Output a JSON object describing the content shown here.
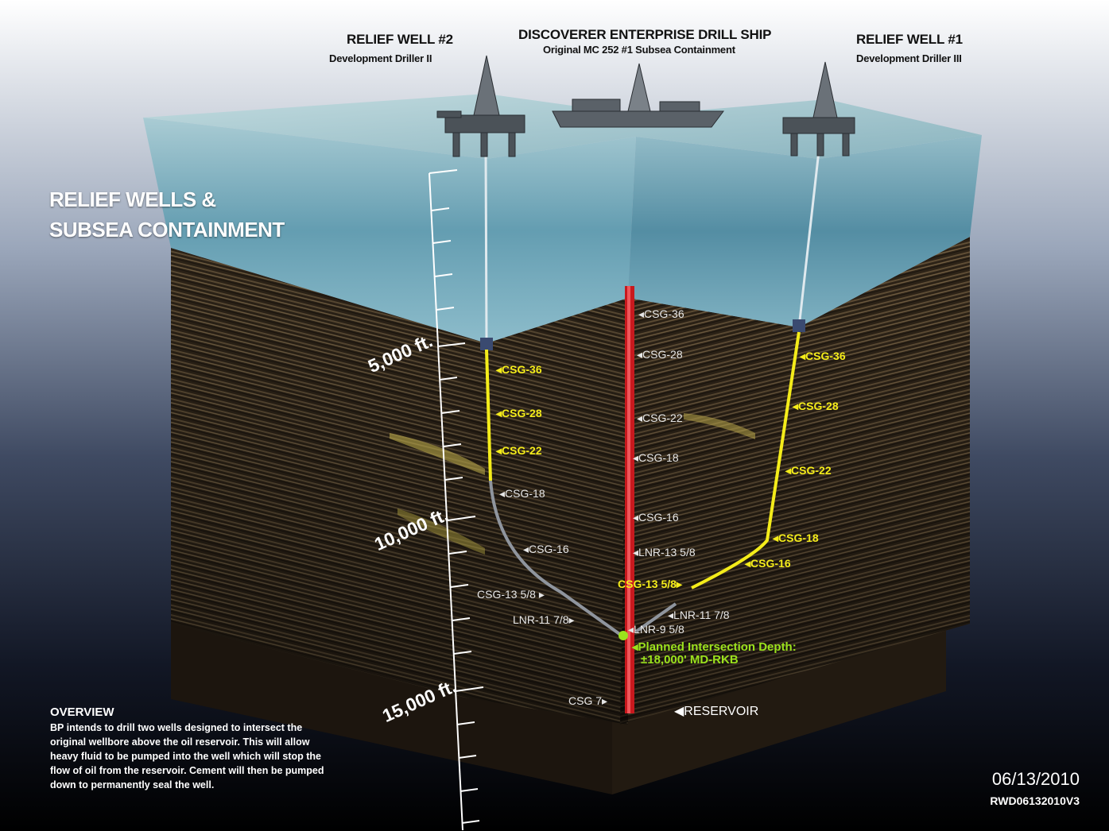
{
  "rigs": {
    "relief2": {
      "title": "RELIEF WELL #2",
      "subtitle": "Development Driller II"
    },
    "ship": {
      "title": "DISCOVERER ENTERPRISE DRILL SHIP",
      "subtitle": "Original MC 252 #1 Subsea Containment"
    },
    "relief1": {
      "title": "RELIEF WELL #1",
      "subtitle": "Development Driller III"
    }
  },
  "title": [
    "RELIEF WELLS &",
    "SUBSEA CONTAINMENT"
  ],
  "depth_labels": [
    "5,000 ft.",
    "10,000 ft.",
    "15,000 ft."
  ],
  "left_well": {
    "yellow": [
      "◂CSG-36",
      "◂CSG-28",
      "◂CSG-22"
    ],
    "white": [
      "◂CSG-18",
      "◂CSG-16"
    ],
    "lower": [
      "CSG-13 5/8 ▸",
      "LNR-11 7/8▸"
    ]
  },
  "center_well": {
    "labels": [
      "◂CSG-36",
      "◂CSG-28",
      "◂CSG-22",
      "◂CSG-18",
      "◂CSG-16",
      "◂LNR-13 5/8",
      "◂LNR-9 5/8"
    ],
    "csg7": "CSG 7▸"
  },
  "right_well": {
    "yellow": [
      "◂CSG-36",
      "◂CSG-28",
      "◂CSG-22",
      "◂CSG-18",
      "◂CSG-16"
    ],
    "csg13": "CSG-13 5/8▸",
    "lnr": "◂LNR-11 7/8"
  },
  "intersection": [
    "◂Planned Intersection Depth:",
    "±18,000' MD-RKB"
  ],
  "reservoir": "◀RESERVOIR",
  "overview": {
    "heading": "OVERVIEW",
    "body": "BP intends to drill two wells designed to intersect the original wellbore above the oil reservoir. This will allow heavy fluid to be pumped into the well which will stop the flow of oil from the reservoir. Cement will then be pumped down to permanently seal the well."
  },
  "date": "06/13/2010",
  "code": "RWD06132010V3",
  "colors": {
    "casing_yellow": "#f4ec1a",
    "main_well_red": "#c8191e",
    "intersection_green": "#9be21d",
    "water": "#6fa7b8"
  }
}
